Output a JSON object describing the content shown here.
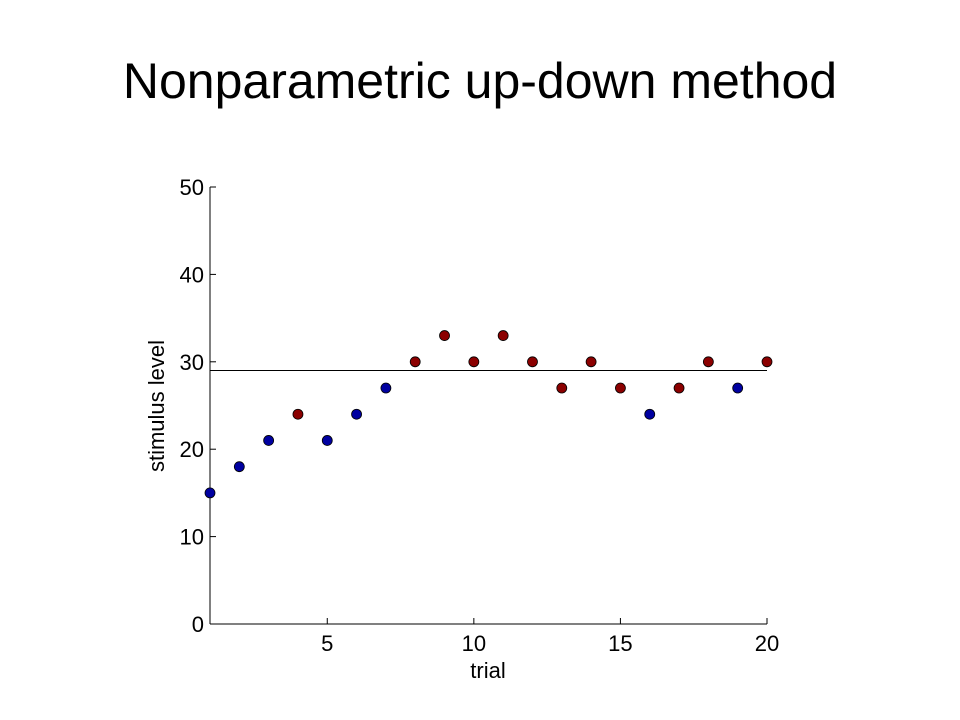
{
  "slide": {
    "title": "Nonparametric up-down method"
  },
  "colors": {
    "blue": "#0000a0",
    "red": "#8b0000",
    "axis": "#000000",
    "threshold": "#000000"
  },
  "chart_data": {
    "type": "scatter",
    "title": "",
    "xlabel": "trial",
    "ylabel": "stimulus level",
    "xlim": [
      1,
      20
    ],
    "ylim": [
      0,
      50
    ],
    "xticks": [
      5,
      10,
      15,
      20
    ],
    "yticks": [
      0,
      10,
      20,
      30,
      40,
      50
    ],
    "grid": false,
    "points": [
      {
        "x": 1,
        "y": 15,
        "color": "blue"
      },
      {
        "x": 2,
        "y": 18,
        "color": "blue"
      },
      {
        "x": 3,
        "y": 21,
        "color": "blue"
      },
      {
        "x": 4,
        "y": 24,
        "color": "red"
      },
      {
        "x": 5,
        "y": 21,
        "color": "blue"
      },
      {
        "x": 6,
        "y": 24,
        "color": "blue"
      },
      {
        "x": 7,
        "y": 27,
        "color": "blue"
      },
      {
        "x": 8,
        "y": 30,
        "color": "red"
      },
      {
        "x": 9,
        "y": 33,
        "color": "red"
      },
      {
        "x": 10,
        "y": 30,
        "color": "red"
      },
      {
        "x": 11,
        "y": 33,
        "color": "red"
      },
      {
        "x": 12,
        "y": 30,
        "color": "red"
      },
      {
        "x": 13,
        "y": 27,
        "color": "red"
      },
      {
        "x": 14,
        "y": 30,
        "color": "red"
      },
      {
        "x": 15,
        "y": 27,
        "color": "red"
      },
      {
        "x": 16,
        "y": 24,
        "color": "blue"
      },
      {
        "x": 17,
        "y": 27,
        "color": "red"
      },
      {
        "x": 18,
        "y": 30,
        "color": "red"
      },
      {
        "x": 19,
        "y": 27,
        "color": "blue"
      },
      {
        "x": 20,
        "y": 30,
        "color": "red"
      }
    ],
    "threshold": 29
  }
}
